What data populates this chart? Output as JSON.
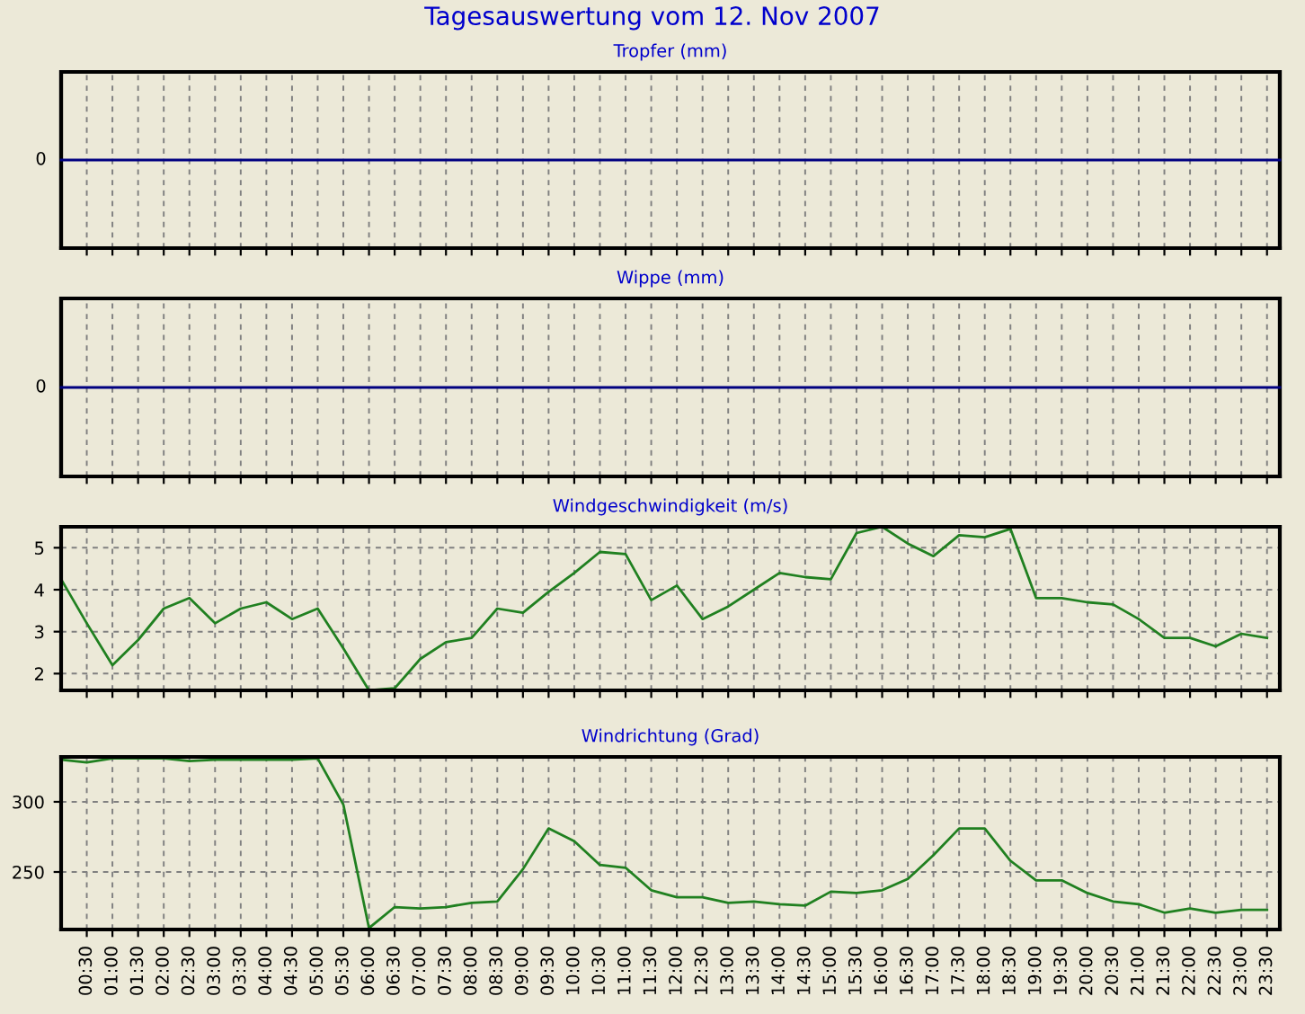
{
  "chart_data": [
    {
      "type": "other",
      "title": "Tagesauswertung vom 12. Nov 2007",
      "subtitle": "Tropfer (mm)",
      "annotations": [
        "0"
      ]
    },
    {
      "type": "other",
      "title": "Wippe (mm)",
      "annotations": [
        "0"
      ]
    },
    {
      "type": "line",
      "title": "Windgeschwindigkeit (m/s)",
      "xlim": [
        0,
        23.75
      ],
      "ylim": [
        1.6,
        5.5
      ],
      "yticks": [
        2,
        3,
        4,
        5
      ],
      "tick_labels": "y",
      "grid": true,
      "xticks": [
        {
          "value": 0.5,
          "label": null
        },
        {
          "value": 1,
          "label": null
        },
        {
          "value": 1.5,
          "label": null
        },
        {
          "value": 2,
          "label": null
        },
        {
          "value": 2.5,
          "label": null
        },
        {
          "value": 3,
          "label": null
        },
        {
          "value": 3.5,
          "label": null
        },
        {
          "value": 4,
          "label": null
        },
        {
          "value": 4.5,
          "label": null
        },
        {
          "value": 5,
          "label": null
        },
        {
          "value": 5.5,
          "label": null
        },
        {
          "value": 6,
          "label": null
        },
        {
          "value": 6.5,
          "label": null
        },
        {
          "value": 7,
          "label": null
        },
        {
          "value": 7.5,
          "label": null
        },
        {
          "value": 8,
          "label": null
        },
        {
          "value": 8.5,
          "label": null
        },
        {
          "value": 9,
          "label": null
        },
        {
          "value": 9.5,
          "label": null
        },
        {
          "value": 10,
          "label": null
        },
        {
          "value": 10.5,
          "label": null
        },
        {
          "value": 11,
          "label": null
        },
        {
          "value": 11.5,
          "label": null
        },
        {
          "value": 12,
          "label": null
        },
        {
          "value": 12.5,
          "label": null
        },
        {
          "value": 13,
          "label": null
        },
        {
          "value": 13.5,
          "label": null
        },
        {
          "value": 14,
          "label": null
        },
        {
          "value": 14.5,
          "label": null
        },
        {
          "value": 15,
          "label": null
        },
        {
          "value": 15.5,
          "label": null
        },
        {
          "value": 16,
          "label": null
        },
        {
          "value": 16.5,
          "label": null
        },
        {
          "value": 17,
          "label": null
        },
        {
          "value": 17.5,
          "label": null
        },
        {
          "value": 18,
          "label": null
        },
        {
          "value": 18.5,
          "label": null
        },
        {
          "value": 19,
          "label": null
        },
        {
          "value": 19.5,
          "label": null
        },
        {
          "value": 20,
          "label": null
        },
        {
          "value": 20.5,
          "label": null
        },
        {
          "value": 21,
          "label": null
        },
        {
          "value": 21.5,
          "label": null
        },
        {
          "value": 22,
          "label": null
        },
        {
          "value": 22.5,
          "label": null
        },
        {
          "value": 23,
          "label": null
        },
        {
          "value": 23.5,
          "label": null
        }
      ],
      "series": [
        {
          "color": "#208020",
          "x": [
            0,
            0.5,
            1,
            1.5,
            2,
            2.5,
            3,
            3.5,
            4,
            4.5,
            5,
            5.5,
            6,
            6.5,
            7,
            7.5,
            8,
            8.5,
            9,
            9.5,
            10,
            10.5,
            11,
            11.5,
            12,
            12.5,
            13,
            13.5,
            14,
            14.5,
            15,
            15.5,
            16,
            16.5,
            17,
            17.5,
            18,
            18.5,
            19,
            19.5,
            20,
            20.5,
            21,
            21.5,
            22,
            22.5,
            23,
            23.5
          ],
          "values": [
            4.25,
            3.2,
            2.2,
            2.8,
            3.55,
            3.8,
            3.2,
            3.55,
            3.7,
            3.3,
            3.55,
            2.6,
            1.6,
            1.65,
            2.35,
            2.75,
            2.85,
            3.55,
            3.45,
            3.95,
            4.4,
            4.9,
            4.85,
            3.75,
            4.1,
            3.3,
            3.6,
            4.0,
            4.4,
            4.3,
            4.25,
            5.35,
            5.5,
            5.1,
            4.8,
            5.3,
            5.25,
            5.45,
            3.8,
            3.8,
            3.7,
            3.65,
            3.3,
            2.85,
            2.85,
            2.65,
            2.95,
            2.85
          ]
        }
      ]
    },
    {
      "type": "line",
      "title": "Windrichtung (Grad)",
      "xlim": [
        0,
        23.75
      ],
      "ylim": [
        209,
        332
      ],
      "yticks": [
        250,
        300
      ],
      "grid": true,
      "xticks": [
        {
          "value": 0.5,
          "label": "00:30"
        },
        {
          "value": 1,
          "label": "01:00"
        },
        {
          "value": 1.5,
          "label": "01:30"
        },
        {
          "value": 2,
          "label": "02:00"
        },
        {
          "value": 2.5,
          "label": "02:30"
        },
        {
          "value": 3,
          "label": "03:00"
        },
        {
          "value": 3.5,
          "label": "03:30"
        },
        {
          "value": 4,
          "label": "04:00"
        },
        {
          "value": 4.5,
          "label": "04:30"
        },
        {
          "value": 5,
          "label": "05:00"
        },
        {
          "value": 5.5,
          "label": "05:30"
        },
        {
          "value": 6,
          "label": "06:00"
        },
        {
          "value": 6.5,
          "label": "06:30"
        },
        {
          "value": 7,
          "label": "07:00"
        },
        {
          "value": 7.5,
          "label": "07:30"
        },
        {
          "value": 8,
          "label": "08:00"
        },
        {
          "value": 8.5,
          "label": "08:30"
        },
        {
          "value": 9,
          "label": "09:00"
        },
        {
          "value": 9.5,
          "label": "09:30"
        },
        {
          "value": 10,
          "label": "10:00"
        },
        {
          "value": 10.5,
          "label": "10:30"
        },
        {
          "value": 11,
          "label": "11:00"
        },
        {
          "value": 11.5,
          "label": "11:30"
        },
        {
          "value": 12,
          "label": "12:00"
        },
        {
          "value": 12.5,
          "label": "12:30"
        },
        {
          "value": 13,
          "label": "13:00"
        },
        {
          "value": 13.5,
          "label": "13:30"
        },
        {
          "value": 14,
          "label": "14:00"
        },
        {
          "value": 14.5,
          "label": "14:30"
        },
        {
          "value": 15,
          "label": "15:00"
        },
        {
          "value": 15.5,
          "label": "15:30"
        },
        {
          "value": 16,
          "label": "16:00"
        },
        {
          "value": 16.5,
          "label": "16:30"
        },
        {
          "value": 17,
          "label": "17:00"
        },
        {
          "value": 17.5,
          "label": "17:30"
        },
        {
          "value": 18,
          "label": "18:00"
        },
        {
          "value": 18.5,
          "label": "18:30"
        },
        {
          "value": 19,
          "label": "19:00"
        },
        {
          "value": 19.5,
          "label": "19:30"
        },
        {
          "value": 20,
          "label": "20:00"
        },
        {
          "value": 20.5,
          "label": "20:30"
        },
        {
          "value": 21,
          "label": "21:00"
        },
        {
          "value": 21.5,
          "label": "21:30"
        },
        {
          "value": 22,
          "label": "22:00"
        },
        {
          "value": 22.5,
          "label": "22:30"
        },
        {
          "value": 23,
          "label": "23:00"
        },
        {
          "value": 23.5,
          "label": "23:30"
        }
      ],
      "series": [
        {
          "color": "#208020",
          "x": [
            0,
            0.5,
            1,
            1.5,
            2,
            2.5,
            3,
            3.5,
            4,
            4.5,
            5,
            5.5,
            6,
            6.5,
            7,
            7.5,
            8,
            8.5,
            9,
            9.5,
            10,
            10.5,
            11,
            11.5,
            12,
            12.5,
            13,
            13.5,
            14,
            14.5,
            15,
            15.5,
            16,
            16.5,
            17,
            17.5,
            18,
            18.5,
            19,
            19.5,
            20,
            20.5,
            21,
            21.5,
            22,
            22.5,
            23,
            23.5
          ],
          "values": [
            330,
            328,
            331,
            331,
            331,
            329,
            330,
            330,
            330,
            330,
            331,
            298,
            210,
            225,
            224,
            225,
            228,
            229,
            252,
            281,
            272,
            255,
            253,
            237,
            232,
            232,
            228,
            229,
            227,
            226,
            236,
            235,
            237,
            245,
            262,
            281,
            281,
            258,
            244,
            244,
            235,
            229,
            227,
            221,
            224,
            221,
            223,
            223
          ]
        }
      ]
    }
  ]
}
